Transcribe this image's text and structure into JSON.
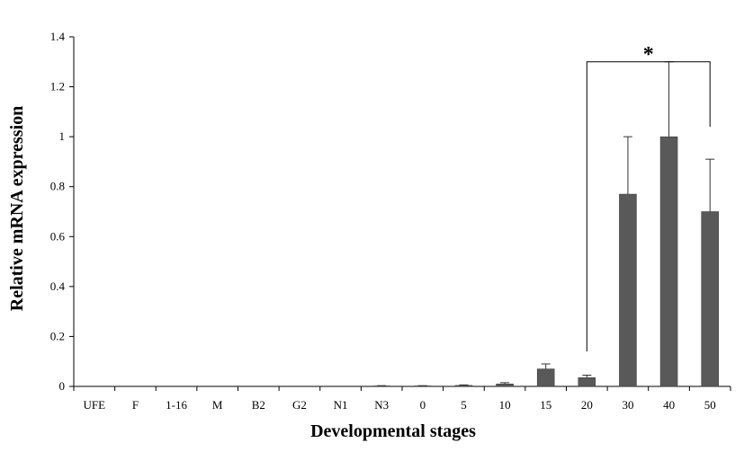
{
  "chart_data": {
    "type": "bar",
    "title": "",
    "xlabel": "Developmental stages",
    "ylabel": "Relative mRNA expression",
    "categories": [
      "UFE",
      "F",
      "1-16",
      "M",
      "B2",
      "G2",
      "N1",
      "N3",
      "0",
      "5",
      "10",
      "15",
      "20",
      "30",
      "40",
      "50"
    ],
    "values": [
      0,
      0,
      0,
      0,
      0,
      0,
      0,
      0.002,
      0.002,
      0.004,
      0.01,
      0.07,
      0.035,
      0.77,
      1.0,
      0.7
    ],
    "errors": [
      0,
      0,
      0,
      0,
      0,
      0,
      0,
      0.001,
      0.001,
      0.002,
      0.005,
      0.02,
      0.01,
      0.23,
      0.3,
      0.21
    ],
    "ylim": [
      0,
      1.4
    ],
    "yticks": [
      0,
      0.2,
      0.4,
      0.6,
      0.8,
      1,
      1.2,
      1.4
    ],
    "ytick_labels": [
      "0",
      "0.2",
      "0.4",
      "0.6",
      "0.8",
      "1",
      "1.2",
      "1.4"
    ],
    "bar_color": "#595959",
    "grid": false,
    "significance": {
      "from": "20",
      "to": "50",
      "label": "*"
    }
  }
}
